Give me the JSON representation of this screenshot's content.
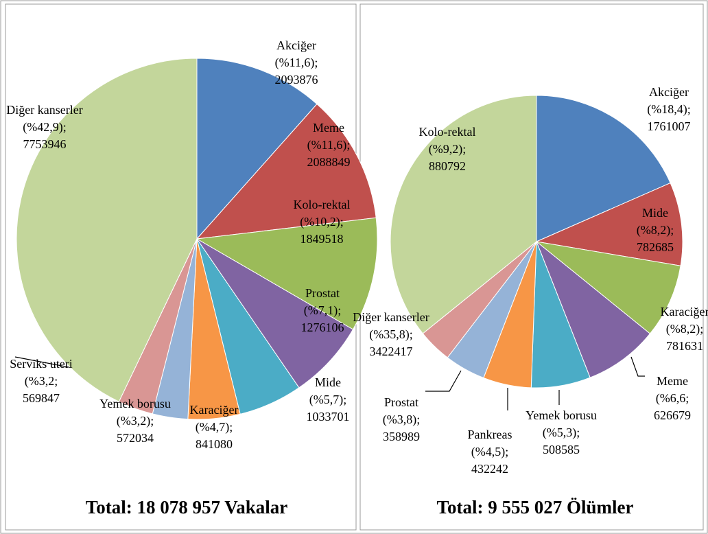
{
  "chart_data": [
    {
      "type": "pie",
      "categories": [
        "Akciğer",
        "Meme",
        "Kolo-rektal",
        "Prostat",
        "Mide",
        "Karaciğer",
        "Yemek borusu",
        "Serviks uteri",
        "Diğer kanserler"
      ],
      "values": [
        2093876,
        2088849,
        1849518,
        1276106,
        1033701,
        841080,
        572034,
        569847,
        7753946
      ],
      "percent_labels": [
        "(%11,6);",
        "(%11,6);",
        "(%10,2);",
        "(%7,1);",
        "(%5,7);",
        "(%4,7);",
        "(%3,2);",
        "(%3,2;",
        "(%42,9);"
      ],
      "colors": [
        "#4f81bd",
        "#c0504d",
        "#9bbb59",
        "#8064a2",
        "#4bacc6",
        "#f79646",
        "#95b3d7",
        "#d99694",
        "#c3d69b"
      ],
      "total": "Total: 18 078 957 Vakalar"
    },
    {
      "type": "pie",
      "categories": [
        "Akciğer",
        "Kolo-rektal",
        "Mide",
        "Karaciğer",
        "Meme",
        "Yemek borusu",
        "Pankreas",
        "Prostat",
        "Diğer kanserler"
      ],
      "values": [
        1761007,
        880792,
        782685,
        781631,
        626679,
        508585,
        432242,
        358989,
        3422417
      ],
      "percent_labels": [
        "(%18,4);",
        "(%9,2);",
        "(%8,2);",
        "(%8,2);",
        "(%6,6;",
        "(%5,3);",
        "(%4,5);",
        "(%3,8);",
        "(%35,8);"
      ],
      "colors": [
        "#4f81bd",
        "#c0504d",
        "#9bbb59",
        "#8064a2",
        "#4bacc6",
        "#f79646",
        "#95b3d7",
        "#d99694",
        "#c3d69b"
      ],
      "total": "Total: 9 555 027 Ölümler"
    }
  ]
}
